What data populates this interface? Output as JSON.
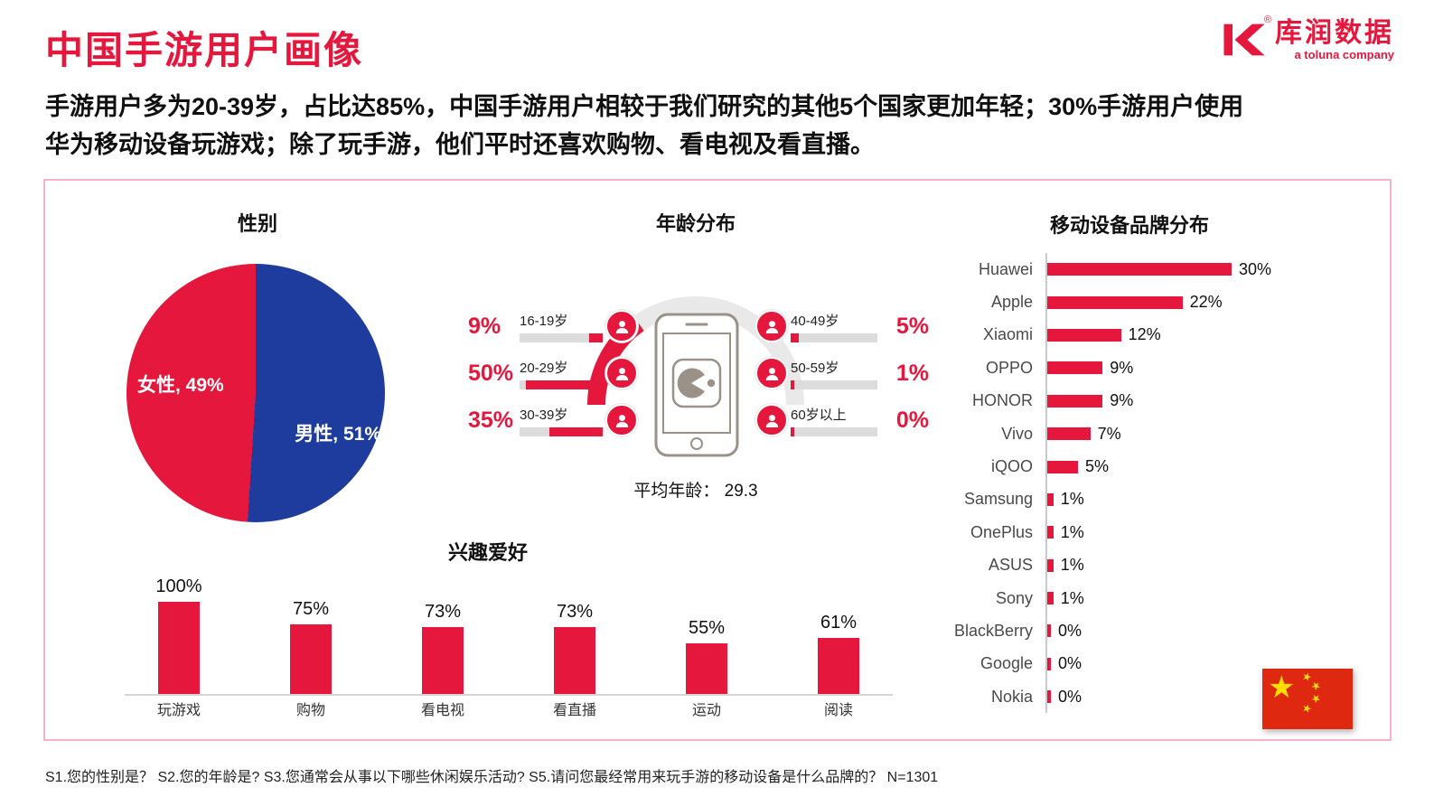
{
  "page": {
    "title": "中国手游用户画像",
    "subtitle_line1": "手游用户多为20-39岁，占比达85%，中国手游用户相较于我们研究的其他5个国家更加年轻；30%手游用户使用",
    "subtitle_line2": "华为移动设备玩游戏；除了玩手游，他们平时还喜欢购物、看电视及看直播。",
    "footnote": "S1.您的性别是？ S2.您的年龄是? S3.您通常会从事以下哪些休闲娱乐活动? S5.请问您最经常用来玩手游的移动设备是什么品牌的？ N=1301"
  },
  "logo": {
    "brand": "库润数据",
    "tagline": "a toluna company",
    "registered_mark": "®"
  },
  "colors": {
    "accent": "#E6173C",
    "male_blue": "#1E3C9E",
    "flag_red": "#DE2910",
    "flag_yellow": "#FFDE00"
  },
  "chart_data": [
    {
      "id": "gender",
      "type": "pie",
      "title": "性别",
      "labels": [
        "女性, 49%",
        "男性, 51%"
      ],
      "values": [
        49,
        51
      ],
      "colors": [
        "#E6173C",
        "#1E3C9E"
      ],
      "legend_position": "inside"
    },
    {
      "id": "age",
      "type": "bar",
      "title": "年龄分布",
      "categories": [
        "16-19岁",
        "20-29岁",
        "30-39岁",
        "40-49岁",
        "50-59岁",
        "60岁以上"
      ],
      "values": [
        9,
        50,
        35,
        5,
        1,
        0
      ],
      "value_suffix": "%",
      "annotation": "平均年龄： 29.3",
      "xlim": [
        0,
        100
      ]
    },
    {
      "id": "brands",
      "type": "bar",
      "orientation": "horizontal",
      "title": "移动设备品牌分布",
      "categories": [
        "Huawei",
        "Apple",
        "Xiaomi",
        "OPPO",
        "HONOR",
        "Vivo",
        "iQOO",
        "Samsung",
        "OnePlus",
        "ASUS",
        "Sony",
        "BlackBerry",
        "Google",
        "Nokia"
      ],
      "values": [
        30,
        22,
        12,
        9,
        9,
        7,
        5,
        1,
        1,
        1,
        1,
        0,
        0,
        0
      ],
      "value_suffix": "%",
      "xlim": [
        0,
        30
      ],
      "grid": false
    },
    {
      "id": "interests",
      "type": "bar",
      "orientation": "vertical",
      "title": "兴趣爱好",
      "categories": [
        "玩游戏",
        "购物",
        "看电视",
        "看直播",
        "运动",
        "阅读"
      ],
      "values": [
        100,
        75,
        73,
        73,
        55,
        61
      ],
      "value_suffix": "%",
      "ylim": [
        0,
        100
      ],
      "grid": false
    }
  ]
}
